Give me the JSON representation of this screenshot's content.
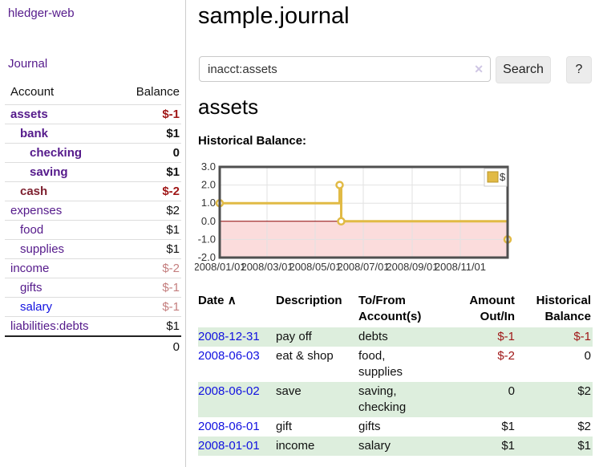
{
  "app": {
    "brand": "hledger-web"
  },
  "colors": {
    "link_purple": "#551a8b",
    "link_blue": "#1111e0",
    "account_maroon": "#7d1f2e",
    "negative_strong": "#a01818",
    "negative_soft": "#c47e7e",
    "row_stripe_green": "#ddeedd"
  },
  "sidebar": {
    "journal_label": "Journal",
    "accounts": {
      "account_header": "Account",
      "balance_header": "Balance",
      "rows": [
        {
          "name": "assets",
          "balance": "$-1",
          "depth": 1,
          "bold": true,
          "name_class": "purple",
          "balance_class": "neg"
        },
        {
          "name": "bank",
          "balance": "$1",
          "depth": 2,
          "bold": true,
          "name_class": "purple",
          "balance_class": "plain"
        },
        {
          "name": "checking",
          "balance": "0",
          "depth": 3,
          "bold": true,
          "name_class": "purple",
          "balance_class": "plain"
        },
        {
          "name": "saving",
          "balance": "$1",
          "depth": 3,
          "bold": true,
          "name_class": "purple",
          "balance_class": "plain"
        },
        {
          "name": "cash",
          "balance": "$-2",
          "depth": 2,
          "bold": true,
          "name_class": "maroon",
          "balance_class": "neg"
        },
        {
          "name": "expenses",
          "balance": "$2",
          "depth": 1,
          "bold": false,
          "name_class": "purple",
          "balance_class": "plain"
        },
        {
          "name": "food",
          "balance": "$1",
          "depth": 2,
          "bold": false,
          "name_class": "purple",
          "balance_class": "plain"
        },
        {
          "name": "supplies",
          "balance": "$1",
          "depth": 2,
          "bold": false,
          "name_class": "purple",
          "balance_class": "plain"
        },
        {
          "name": "income",
          "balance": "$-2",
          "depth": 1,
          "bold": false,
          "name_class": "purple",
          "balance_class": "soft"
        },
        {
          "name": "gifts",
          "balance": "$-1",
          "depth": 2,
          "bold": false,
          "name_class": "purple",
          "balance_class": "soft"
        },
        {
          "name": "salary",
          "balance": "$-1",
          "depth": 2,
          "bold": false,
          "name_class": "blue",
          "balance_class": "soft"
        },
        {
          "name": "liabilities:debts",
          "balance": "$1",
          "depth": 1,
          "bold": false,
          "name_class": "purple",
          "balance_class": "plain"
        }
      ],
      "total": "0"
    }
  },
  "main": {
    "title": "sample.journal",
    "search": {
      "query": "inacct:assets",
      "clear_icon": "✕",
      "button_label": "Search",
      "help_label": "?"
    },
    "account_heading": "assets",
    "chart_label": "Historical Balance:"
  },
  "register": {
    "headers": {
      "date": "Date",
      "sort_icon": "∧",
      "description": "Description",
      "accounts": "To/From Account(s)",
      "amount": "Amount Out/In",
      "balance": "Historical Balance"
    },
    "rows": [
      {
        "date": "2008-12-31",
        "description": "pay off",
        "accounts": "debts",
        "amount": "$-1",
        "amount_class": "neg",
        "balance": "$-1",
        "balance_class": "neg"
      },
      {
        "date": "2008-06-03",
        "description": "eat & shop",
        "accounts": "food, supplies",
        "amount": "$-2",
        "amount_class": "neg",
        "balance": "0",
        "balance_class": "plain"
      },
      {
        "date": "2008-06-02",
        "description": "save",
        "accounts": "saving, checking",
        "amount": "0",
        "amount_class": "plain",
        "balance": "$2",
        "balance_class": "plain"
      },
      {
        "date": "2008-06-01",
        "description": "gift",
        "accounts": "gifts",
        "amount": "$1",
        "amount_class": "plain",
        "balance": "$2",
        "balance_class": "plain"
      },
      {
        "date": "2008-01-01",
        "description": "income",
        "accounts": "salary",
        "amount": "$1",
        "amount_class": "plain",
        "balance": "$1",
        "balance_class": "plain"
      }
    ]
  },
  "chart_data": {
    "type": "line",
    "title": "Historical Balance",
    "legend": "$",
    "x_ticks": [
      "2008/01/01",
      "2008/03/01",
      "2008/05/01",
      "2008/07/01",
      "2008/09/01",
      "2008/11/01"
    ],
    "tick_days": [
      0,
      60,
      121,
      182,
      244,
      305
    ],
    "y_ticks": [
      "3.0",
      "2.0",
      "1.0",
      "0.0",
      "-1.0",
      "-2.0"
    ],
    "ylim": [
      -2,
      3
    ],
    "xlim_days": [
      0,
      365
    ],
    "series": [
      {
        "name": "$",
        "style": "step",
        "points": [
          {
            "date": "2008-01-01",
            "day": 0,
            "value": 1
          },
          {
            "date": "2008-06-01",
            "day": 152,
            "value": 2
          },
          {
            "date": "2008-06-03",
            "day": 154,
            "value": 0
          },
          {
            "date": "2008-12-31",
            "day": 365,
            "value": -1
          }
        ]
      }
    ],
    "grid": true,
    "legend_position": "top-right",
    "colors": {
      "line": "#e1ba45",
      "marker_fill": "#ffffff",
      "below_zero_fill": "#fbdcdc",
      "zero_line": "#8b0000",
      "grid": "#e2e2e2",
      "border": "#4f4f4f",
      "legend_border": "#cccccc",
      "legend_square_border": "#bb9626"
    }
  }
}
